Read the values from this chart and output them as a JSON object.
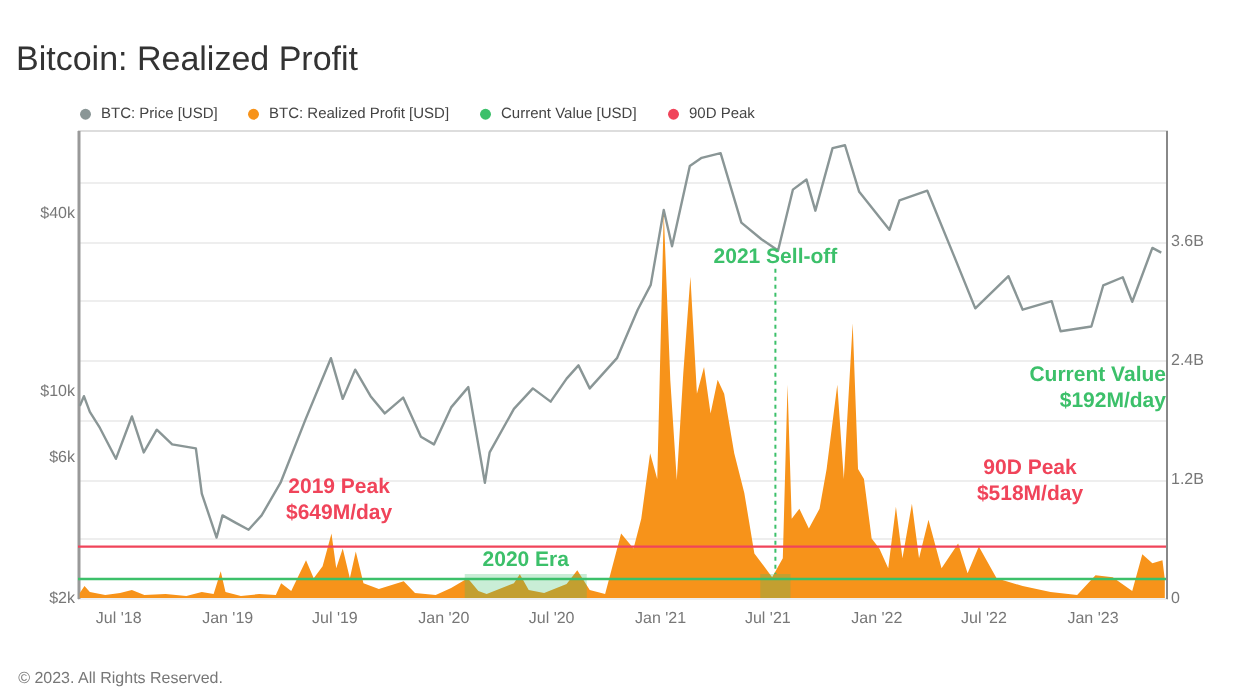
{
  "chart_data": {
    "type": "line",
    "title": "Bitcoin: Realized Profit",
    "xlim": [
      "2018-04-25",
      "2023-05-06"
    ],
    "xticks": [
      {
        "value": "2018-07-01",
        "label": "Jul '18"
      },
      {
        "value": "2019-01-01",
        "label": "Jan '19"
      },
      {
        "value": "2019-07-01",
        "label": "Jul '19"
      },
      {
        "value": "2020-01-01",
        "label": "Jan '20"
      },
      {
        "value": "2020-07-01",
        "label": "Jul '20"
      },
      {
        "value": "2021-01-01",
        "label": "Jan '21"
      },
      {
        "value": "2021-07-01",
        "label": "Jul '21"
      },
      {
        "value": "2022-01-01",
        "label": "Jan '22"
      },
      {
        "value": "2022-07-01",
        "label": "Jul '22"
      },
      {
        "value": "2023-01-01",
        "label": "Jan '23"
      }
    ],
    "ylim": [
      2000,
      76000
    ],
    "yticks": [
      {
        "value": 2000,
        "label": "$2k"
      },
      {
        "value": 6000,
        "label": "$6k"
      },
      {
        "value": 10000,
        "label": "$10k"
      },
      {
        "value": 40000,
        "label": "$40k"
      }
    ],
    "y2lim": [
      0,
      4.72
    ],
    "y2ticks": [
      0,
      {
        "value": 0.6,
        "label": null
      },
      {
        "value": 1.2,
        "label": "1.2B"
      },
      {
        "value": 1.8,
        "label": null
      },
      {
        "value": 2.4,
        "label": "2.4B"
      },
      {
        "value": 3.0,
        "label": null
      },
      {
        "value": 3.6,
        "label": "3.6B"
      },
      {
        "value": 4.2,
        "label": null
      }
    ],
    "log": "y",
    "grid": "y",
    "legend": "top",
    "series": [
      {
        "name": "BTC: Price [USD]",
        "color": "#8a9696",
        "x": [
          "2018-04-28",
          "2018-05-05",
          "2018-05-15",
          "2018-06-01",
          "2018-06-28",
          "2018-07-25",
          "2018-08-14",
          "2018-09-05",
          "2018-10-01",
          "2018-11-10",
          "2018-11-20",
          "2018-12-15",
          "2018-12-25",
          "2019-01-15",
          "2019-02-07",
          "2019-03-01",
          "2019-04-02",
          "2019-05-14",
          "2019-06-26",
          "2019-07-16",
          "2019-08-06",
          "2019-09-01",
          "2019-09-25",
          "2019-10-26",
          "2019-11-25",
          "2019-12-17",
          "2020-01-15",
          "2020-02-13",
          "2020-03-12",
          "2020-03-20",
          "2020-04-30",
          "2020-06-01",
          "2020-07-01",
          "2020-07-28",
          "2020-08-17",
          "2020-09-05",
          "2020-10-21",
          "2020-11-25",
          "2020-12-17",
          "2021-01-08",
          "2021-01-22",
          "2021-02-21",
          "2021-03-13",
          "2021-04-14",
          "2021-05-19",
          "2021-06-22",
          "2021-07-20",
          "2021-08-14",
          "2021-09-06",
          "2021-09-21",
          "2021-10-20",
          "2021-11-10",
          "2021-12-04",
          "2022-01-24",
          "2022-02-10",
          "2022-03-29",
          "2022-05-12",
          "2022-06-18",
          "2022-08-13",
          "2022-09-06",
          "2022-10-25",
          "2022-11-09",
          "2022-12-31",
          "2023-01-20",
          "2023-02-22",
          "2023-03-10",
          "2023-04-13",
          "2023-04-28"
        ],
        "values": [
          8900,
          9600,
          8500,
          7500,
          5900,
          8200,
          6200,
          7400,
          6600,
          6400,
          4500,
          3200,
          3800,
          3600,
          3400,
          3800,
          4900,
          8000,
          12900,
          9400,
          11800,
          9600,
          8400,
          9500,
          7000,
          6600,
          8800,
          10300,
          4900,
          6200,
          8700,
          10200,
          9200,
          11000,
          12200,
          10200,
          12900,
          18800,
          22800,
          40800,
          30800,
          57500,
          61200,
          63500,
          37000,
          32500,
          29800,
          47800,
          51700,
          40600,
          66000,
          67500,
          47000,
          35000,
          44000,
          47400,
          28900,
          19000,
          24400,
          18800,
          20100,
          15900,
          16500,
          22700,
          24200,
          20000,
          30400,
          29300
        ]
      },
      {
        "name": "BTC: Realized Profit [USD]",
        "type": "area",
        "axis": "y2",
        "color": "#f7931a",
        "x": [
          "2018-04-28",
          "2018-05-06",
          "2018-05-15",
          "2018-06-10",
          "2018-07-05",
          "2018-07-25",
          "2018-08-15",
          "2018-09-20",
          "2018-10-25",
          "2018-11-20",
          "2018-12-10",
          "2018-12-22",
          "2018-12-30",
          "2019-01-25",
          "2019-02-25",
          "2019-03-25",
          "2019-04-03",
          "2019-04-20",
          "2019-05-15",
          "2019-05-28",
          "2019-06-12",
          "2019-06-27",
          "2019-07-05",
          "2019-07-16",
          "2019-07-28",
          "2019-08-07",
          "2019-08-20",
          "2019-09-15",
          "2019-10-27",
          "2019-11-15",
          "2019-12-20",
          "2020-01-15",
          "2020-02-12",
          "2020-03-01",
          "2020-03-15",
          "2020-04-30",
          "2020-05-10",
          "2020-05-25",
          "2020-06-20",
          "2020-07-28",
          "2020-08-15",
          "2020-09-05",
          "2020-10-01",
          "2020-10-28",
          "2020-11-18",
          "2020-12-01",
          "2020-12-16",
          "2020-12-28",
          "2021-01-08",
          "2021-01-19",
          "2021-01-30",
          "2021-02-10",
          "2021-02-22",
          "2021-03-05",
          "2021-03-17",
          "2021-03-28",
          "2021-04-09",
          "2021-04-20",
          "2021-05-07",
          "2021-05-24",
          "2021-06-10",
          "2021-07-10",
          "2021-07-28",
          "2021-08-05",
          "2021-08-12",
          "2021-08-25",
          "2021-09-10",
          "2021-09-28",
          "2021-10-10",
          "2021-10-28",
          "2021-11-08",
          "2021-11-23",
          "2021-12-02",
          "2021-12-12",
          "2021-12-25",
          "2022-01-07",
          "2022-01-22",
          "2022-02-04",
          "2022-02-15",
          "2022-03-03",
          "2022-03-15",
          "2022-03-31",
          "2022-04-22",
          "2022-05-20",
          "2022-06-05",
          "2022-06-24",
          "2022-07-24",
          "2022-09-06",
          "2022-10-23",
          "2022-12-07",
          "2023-01-07",
          "2023-02-05",
          "2023-03-10",
          "2023-03-27",
          "2023-04-13",
          "2023-04-30",
          "2023-05-04"
        ],
        "values": [
          0.05,
          0.12,
          0.06,
          0.03,
          0.05,
          0.08,
          0.03,
          0.04,
          0.02,
          0.06,
          0.04,
          0.27,
          0.06,
          0.02,
          0.04,
          0.03,
          0.15,
          0.07,
          0.38,
          0.2,
          0.32,
          0.65,
          0.3,
          0.5,
          0.2,
          0.47,
          0.15,
          0.09,
          0.17,
          0.05,
          0.03,
          0.1,
          0.2,
          0.07,
          0.04,
          0.15,
          0.24,
          0.08,
          0.05,
          0.14,
          0.28,
          0.08,
          0.04,
          0.65,
          0.5,
          0.8,
          1.46,
          1.2,
          3.88,
          2.2,
          1.19,
          2.27,
          3.24,
          2.06,
          2.33,
          1.86,
          2.2,
          2.06,
          1.46,
          1.06,
          0.45,
          0.21,
          0.4,
          2.15,
          0.8,
          0.9,
          0.7,
          0.9,
          1.3,
          2.15,
          1.2,
          2.77,
          1.3,
          1.2,
          0.6,
          0.5,
          0.3,
          0.92,
          0.4,
          0.95,
          0.4,
          0.79,
          0.3,
          0.55,
          0.25,
          0.52,
          0.2,
          0.12,
          0.06,
          0.03,
          0.23,
          0.21,
          0.07,
          0.44,
          0.35,
          0.38,
          0.19
        ]
      },
      {
        "name": "Current Value [USD]",
        "type": "line",
        "axis": "y2",
        "color": "#3cc06a",
        "x": [
          "2018-04-25",
          "2023-05-06"
        ],
        "values": [
          0.192,
          0.192
        ]
      },
      {
        "name": "90D Peak",
        "type": "line",
        "axis": "y2",
        "color": "#f0445a",
        "x": [
          "2018-04-25",
          "2023-05-06"
        ],
        "values": [
          0.518,
          0.518
        ]
      }
    ],
    "bands": [
      {
        "axis": "x",
        "from": "2020-02-07",
        "to": "2020-08-31",
        "label": "2020 Era",
        "color": "#3cc06a"
      },
      {
        "axis": "x",
        "from": "2021-06-20",
        "to": "2021-08-10",
        "label": "2021 Sell-off",
        "color": "#3cc06a"
      }
    ],
    "annotations": [
      "2019 Peak\n$649M/day",
      "90D Peak\n$518M/day",
      "Current Value\n$192M/day",
      "© 2023. All Rights Reserved."
    ]
  }
}
